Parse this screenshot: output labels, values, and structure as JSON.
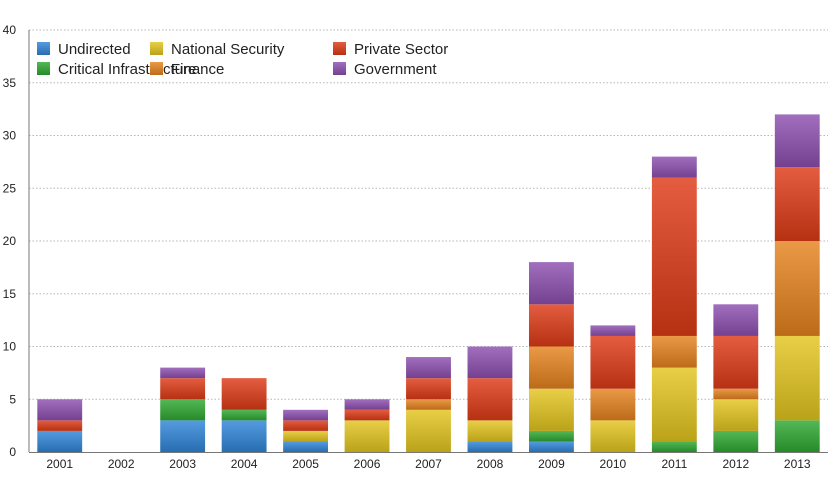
{
  "chart_data": {
    "type": "bar",
    "stacked": true,
    "title": "",
    "xlabel": "",
    "ylabel": "",
    "ylim": [
      0,
      40
    ],
    "yticks": [
      0,
      5,
      10,
      15,
      20,
      25,
      30,
      35,
      40
    ],
    "grid": true,
    "legend_position": "top-left",
    "categories": [
      "2001",
      "2002",
      "2003",
      "2004",
      "2005",
      "2006",
      "2007",
      "2008",
      "2009",
      "2010",
      "2011",
      "2012",
      "2013"
    ],
    "series": [
      {
        "name": "Undirected",
        "color": "#2f86d8",
        "values": [
          2,
          0,
          3,
          3,
          1,
          0,
          0,
          1,
          1,
          0,
          0,
          0,
          0
        ]
      },
      {
        "name": "Critical Infrastructure",
        "color": "#2ea832",
        "values": [
          0,
          0,
          2,
          1,
          0,
          0,
          0,
          0,
          1,
          0,
          1,
          2,
          3
        ]
      },
      {
        "name": "National Security",
        "color": "#e3c51e",
        "values": [
          0,
          0,
          0,
          0,
          1,
          3,
          4,
          2,
          4,
          3,
          7,
          3,
          8
        ]
      },
      {
        "name": "Finance",
        "color": "#e5821e",
        "values": [
          0,
          0,
          0,
          0,
          0,
          0,
          1,
          0,
          4,
          3,
          3,
          1,
          9
        ]
      },
      {
        "name": "Private Sector",
        "color": "#de3a16",
        "values": [
          1,
          0,
          2,
          3,
          1,
          1,
          2,
          4,
          4,
          5,
          15,
          5,
          7
        ]
      },
      {
        "name": "Government",
        "color": "#8c4fb0",
        "values": [
          2,
          0,
          1,
          0,
          1,
          1,
          2,
          3,
          4,
          1,
          2,
          3,
          5
        ]
      }
    ]
  }
}
